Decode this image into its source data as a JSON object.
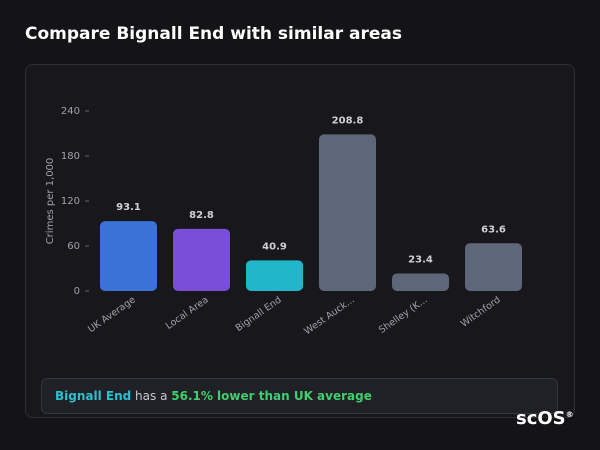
{
  "chart_data": {
    "type": "bar",
    "title": "Compare Bignall End with similar areas",
    "y_label": "Crimes per 1,000",
    "categories": [
      "UK Average",
      "Local Area",
      "Bignall End",
      "West Auck...",
      "Shelley (K...",
      "Witchford"
    ],
    "values": [
      93.1,
      82.8,
      40.9,
      208.8,
      23.4,
      63.6
    ],
    "colors": [
      "#3a72d8",
      "#7a4fd8",
      "#22b6cb",
      "#5d6779",
      "#5d6779",
      "#5d6779"
    ],
    "ylim": [
      0,
      240
    ],
    "yticks": [
      0,
      60,
      120,
      180,
      240
    ],
    "grid": false
  },
  "summary": {
    "area": "Bignall End",
    "text": " has a ",
    "highlight": "56.1% lower than UK average"
  },
  "logo": {
    "text": "scOS",
    "mark": "®"
  }
}
